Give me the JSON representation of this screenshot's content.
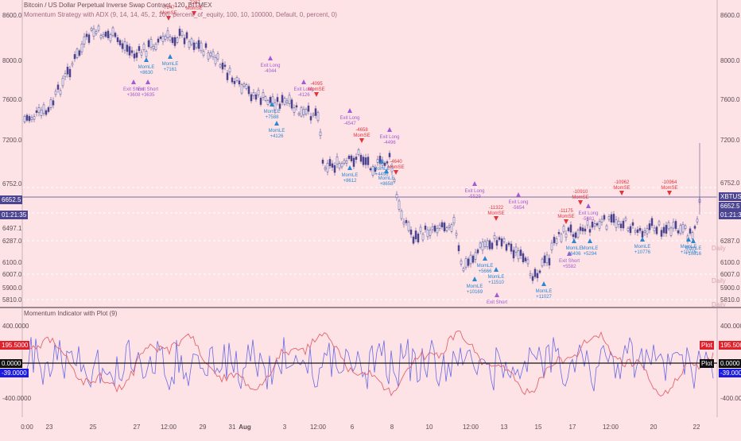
{
  "header": {
    "title": "Bitcoin / US Dollar Perpetual Inverse Swap Contract, 120, BITMEX",
    "strategy": "Momentum Strategy with ADX (9, 14, 14, 45, 2, 100, percent_of_equity, 100, 10, 100000, Default, 0, percent, 0)"
  },
  "osc_title": "Momentum Indicator with Plot (9)",
  "price_axis": {
    "right_ticks": [
      "8600.0",
      "8000.0",
      "7600.0",
      "7200.0",
      "6752.0",
      "6287.0",
      "6100.0",
      "6007.0",
      "5900.0",
      "5810.0"
    ],
    "left_ticks": [
      "8600.0",
      "8000.0",
      "7600.0",
      "7200.0",
      "6752.0",
      "6497.1",
      "6287.0",
      "6100.0",
      "6007.0",
      "5900.0",
      "5810.0"
    ],
    "last_price": "6652.5",
    "countdown": "01:21:35",
    "symbol_tag": "XBTUSD",
    "daily_labels": [
      "Daily",
      "Daily",
      "Daily"
    ]
  },
  "osc_axis": {
    "ticks": [
      "400.0000",
      "0.0000",
      "-400.0000"
    ],
    "red_value": "195.5000",
    "zero_value": "0.0000",
    "blue_value": "-39.0000",
    "plot_label": "Plot"
  },
  "time_axis": [
    "0:00",
    "23",
    "25",
    "27",
    "12:00",
    "29",
    "31",
    "Aug",
    "3",
    "12:00",
    "6",
    "8",
    "10",
    "12:00",
    "13",
    "15",
    "17",
    "12:00",
    "20",
    "22"
  ],
  "colors": {
    "background": "#fde3e6",
    "price": "#4b4490",
    "entry": "#2f86d0",
    "short": "#e0343d",
    "exit": "#a35ad2",
    "osc_red": "#e4646d",
    "osc_blue": "#6a6ae3"
  },
  "signals": [
    {
      "type": "short",
      "label": "MomSE",
      "value": "-7247"
    },
    {
      "type": "short",
      "label": "MomSE",
      "value": "-7287"
    },
    {
      "type": "long",
      "label": "MomLE",
      "value": "+7161"
    },
    {
      "type": "long",
      "label": "MomLE",
      "value": "+8630"
    },
    {
      "type": "exit",
      "label": "Exit Short",
      "value": "+3608"
    },
    {
      "type": "exit",
      "label": "Exit Short",
      "value": "+3635"
    },
    {
      "type": "exit",
      "label": "Exit Long",
      "value": "-4044"
    },
    {
      "type": "long",
      "label": "MomLE",
      "value": "+7588"
    },
    {
      "type": "long",
      "label": "MomLE",
      "value": "+4126"
    },
    {
      "type": "exit",
      "label": "Exit Long",
      "value": "-4126"
    },
    {
      "type": "short",
      "label": "MomSE",
      "value": "-4095"
    },
    {
      "type": "exit",
      "label": "Exit Long",
      "value": "-4547"
    },
    {
      "type": "short",
      "label": "MomSE",
      "value": "-4658"
    },
    {
      "type": "exit",
      "label": "Exit Long",
      "value": "-4496"
    },
    {
      "type": "short",
      "label": "MomSE",
      "value": "-4640"
    },
    {
      "type": "long",
      "label": "MomLE",
      "value": "+4496"
    },
    {
      "type": "long",
      "label": "MomLE",
      "value": "+8658"
    },
    {
      "type": "long",
      "label": "MomLE",
      "value": "+8612"
    },
    {
      "type": "exit",
      "label": "Exit Long",
      "value": "-5529"
    },
    {
      "type": "short",
      "label": "MomSE",
      "value": "-11322"
    },
    {
      "type": "exit",
      "label": "Exit Long",
      "value": "-5654"
    },
    {
      "type": "long",
      "label": "MomLE",
      "value": "+5666"
    },
    {
      "type": "long",
      "label": "MomLE",
      "value": "+11510"
    },
    {
      "type": "long",
      "label": "MomLE",
      "value": "+10169"
    },
    {
      "type": "exit",
      "label": "Exit Short",
      "value": ""
    },
    {
      "type": "long",
      "label": "MomLE",
      "value": "+11027"
    },
    {
      "type": "short",
      "label": "MomSE",
      "value": "-10910"
    },
    {
      "type": "short",
      "label": "MomSE",
      "value": "-11175"
    },
    {
      "type": "exit",
      "label": "Exit Long",
      "value": "-5681"
    },
    {
      "type": "exit",
      "label": "Exit Short",
      "value": "+5582"
    },
    {
      "type": "long",
      "label": "MomLE",
      "value": "+6406"
    },
    {
      "type": "long",
      "label": "MomLE",
      "value": "+10776"
    },
    {
      "type": "long",
      "label": "MomLE",
      "value": "+5294"
    },
    {
      "type": "short",
      "label": "MomSE",
      "value": "-10962"
    },
    {
      "type": "short",
      "label": "MomSE",
      "value": "-10964"
    },
    {
      "type": "long",
      "label": "MomLE",
      "value": "+10775"
    },
    {
      "type": "long",
      "label": "MomLE",
      "value": "+10816"
    }
  ]
}
